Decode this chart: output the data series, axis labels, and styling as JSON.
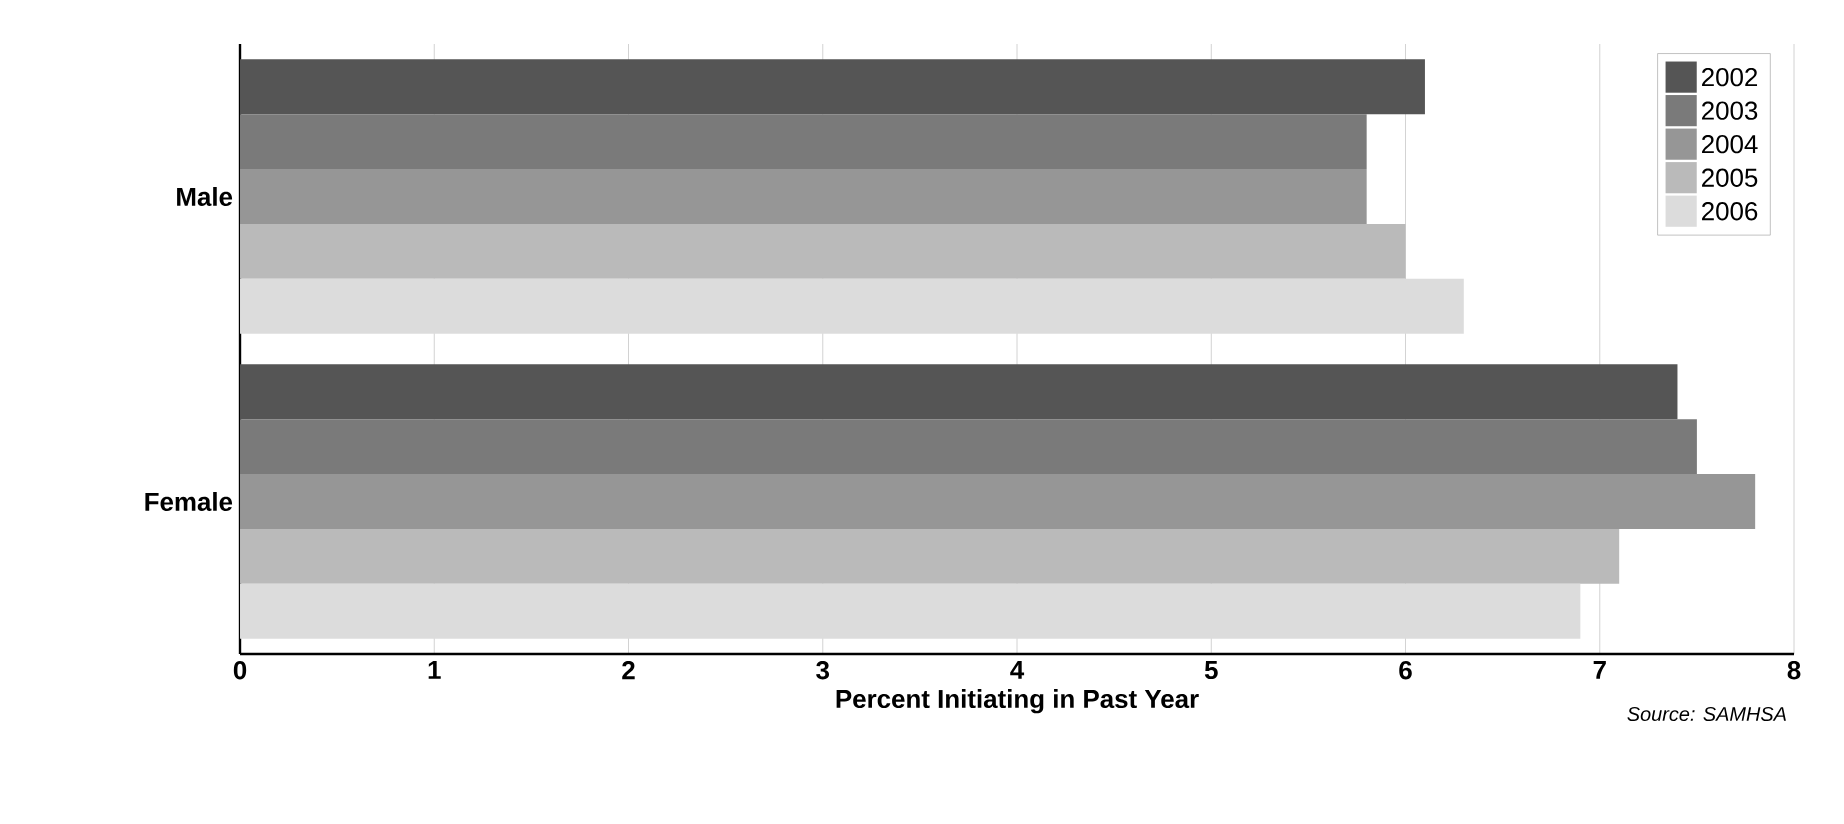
{
  "chart_data": {
    "type": "bar",
    "orientation": "horizontal",
    "categories": [
      "Male",
      "Female"
    ],
    "series": [
      {
        "name": "2002",
        "color": "#555555",
        "values": [
          6.1,
          7.4
        ]
      },
      {
        "name": "2003",
        "color": "#7a7a7a",
        "values": [
          5.8,
          7.5
        ]
      },
      {
        "name": "2004",
        "color": "#969696",
        "values": [
          5.8,
          7.8
        ]
      },
      {
        "name": "2005",
        "color": "#bababa",
        "values": [
          6.0,
          7.1
        ]
      },
      {
        "name": "2006",
        "color": "#dcdcdc",
        "values": [
          6.3,
          6.9
        ]
      }
    ],
    "xlabel": "Percent Initiating in Past Year",
    "xlim": [
      0,
      8
    ],
    "xticks": [
      0,
      1,
      2,
      3,
      4,
      5,
      6,
      7,
      8
    ],
    "grid": "x",
    "legend": "top right",
    "annotations": [
      "Source: SAMHSA"
    ]
  }
}
